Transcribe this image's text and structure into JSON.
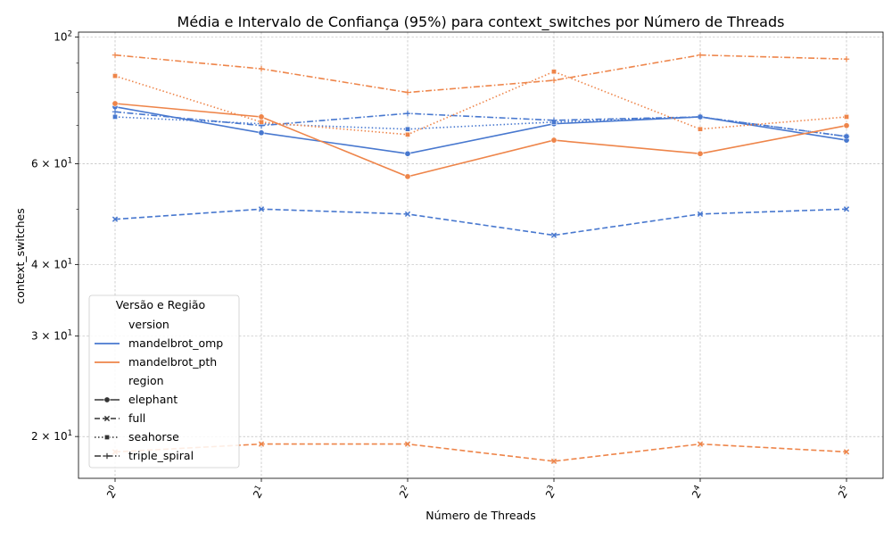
{
  "chart_data": {
    "type": "line",
    "title": "Média e Intervalo de Confiança (95%) para context_switches por Número de Threads",
    "xlabel": "Número de Threads",
    "ylabel": "context_switches",
    "x_scale": "log2",
    "y_scale": "log",
    "x": [
      1,
      2,
      4,
      8,
      16,
      32
    ],
    "x_tick_labels": [
      {
        "base": "2",
        "exp": "0"
      },
      {
        "base": "2",
        "exp": "1"
      },
      {
        "base": "2",
        "exp": "2"
      },
      {
        "base": "2",
        "exp": "3"
      },
      {
        "base": "2",
        "exp": "4"
      },
      {
        "base": "2",
        "exp": "5"
      }
    ],
    "ylim": [
      16.9,
      102
    ],
    "y_major_ticks": [
      {
        "value": 20,
        "base": "2",
        "mult": "10",
        "exp": "1",
        "label": "2 × 10^1"
      },
      {
        "value": 30,
        "base": "3",
        "mult": "10",
        "exp": "1",
        "label": "3 × 10^1"
      },
      {
        "value": 40,
        "base": "4",
        "mult": "10",
        "exp": "1",
        "label": "4 × 10^1"
      },
      {
        "value": 60,
        "base": "6",
        "mult": "10",
        "exp": "1",
        "label": "6 × 10^1"
      },
      {
        "value": 100,
        "base": "10",
        "mult": "",
        "exp": "2",
        "label": "10^2"
      }
    ],
    "y_minor_ticks": [
      50,
      70,
      80,
      90
    ],
    "grid": true,
    "colors": {
      "mandelbrot_omp": "#4878cf",
      "mandelbrot_pth": "#ee854a"
    },
    "series": [
      {
        "version": "mandelbrot_omp",
        "region": "elephant",
        "values": [
          75.5,
          68.0,
          62.5,
          70.5,
          72.5,
          66.0
        ]
      },
      {
        "version": "mandelbrot_omp",
        "region": "full",
        "values": [
          48.0,
          50.0,
          49.0,
          45.0,
          49.0,
          50.0
        ]
      },
      {
        "version": "mandelbrot_omp",
        "region": "seahorse",
        "values": [
          72.5,
          70.5,
          69.0,
          71.0,
          72.5,
          67.0
        ]
      },
      {
        "version": "mandelbrot_omp",
        "region": "triple_spiral",
        "values": [
          74.0,
          70.0,
          73.5,
          71.5,
          72.5,
          67.0
        ]
      },
      {
        "version": "mandelbrot_pth",
        "region": "elephant",
        "values": [
          76.5,
          72.5,
          57.0,
          66.0,
          62.5,
          70.0
        ]
      },
      {
        "version": "mandelbrot_pth",
        "region": "full",
        "values": [
          18.8,
          19.4,
          19.4,
          18.1,
          19.4,
          18.8
        ]
      },
      {
        "version": "mandelbrot_pth",
        "region": "seahorse",
        "values": [
          85.5,
          71.0,
          67.5,
          87.0,
          69.0,
          72.5
        ]
      },
      {
        "version": "mandelbrot_pth",
        "region": "triple_spiral",
        "values": [
          93.0,
          88.0,
          80.0,
          84.0,
          93.0,
          91.5
        ]
      }
    ],
    "legend": {
      "title": "Versão e Região",
      "placement": "lower-left",
      "version_header": "version",
      "region_header": "region",
      "versions": [
        "mandelbrot_omp",
        "mandelbrot_pth"
      ],
      "regions": [
        {
          "name": "elephant",
          "marker": "circle",
          "dash": "solid"
        },
        {
          "name": "full",
          "marker": "x",
          "dash": "dashed"
        },
        {
          "name": "seahorse",
          "marker": "square",
          "dash": "dotted"
        },
        {
          "name": "triple_spiral",
          "marker": "plus",
          "dash": "dashdot"
        }
      ]
    }
  }
}
